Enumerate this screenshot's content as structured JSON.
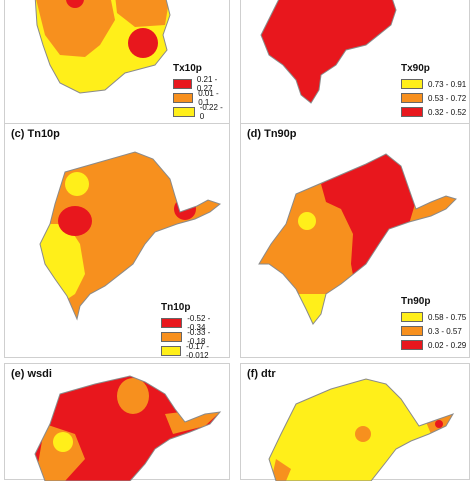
{
  "colors": {
    "red": "#e8171d",
    "orange": "#f7901e",
    "yellow": "#ffef1a",
    "outline": "#8a8a8a"
  },
  "panels": [
    {
      "id": "tx10p",
      "title": "",
      "legend": {
        "title": "Tx10p",
        "items": [
          {
            "label": "0.21 - 0.27",
            "color": "#e8171d"
          },
          {
            "label": "0.01 - 0.1",
            "color": "#f7901e"
          },
          {
            "label": "-0.22 - 0",
            "color": "#ffef1a"
          }
        ]
      }
    },
    {
      "id": "tx90p",
      "title": "",
      "legend": {
        "title": "Tx90p",
        "items": [
          {
            "label": "0.73 - 0.91",
            "color": "#ffef1a"
          },
          {
            "label": "0.53 - 0.72",
            "color": "#f7901e"
          },
          {
            "label": "0.32 - 0.52",
            "color": "#e8171d"
          }
        ]
      }
    },
    {
      "id": "tn10p",
      "title": "(c) Tn10p",
      "legend": {
        "title": "Tn10p",
        "items": [
          {
            "label": "-0.52 - -0.34",
            "color": "#e8171d"
          },
          {
            "label": "-0.33 - -0.18",
            "color": "#f7901e"
          },
          {
            "label": "-0.17 - -0.012",
            "color": "#ffef1a"
          }
        ]
      }
    },
    {
      "id": "tn90p",
      "title": "(d) Tn90p",
      "legend": {
        "title": "Tn90p",
        "items": [
          {
            "label": "0.58 - 0.75",
            "color": "#ffef1a"
          },
          {
            "label": "0.3 - 0.57",
            "color": "#f7901e"
          },
          {
            "label": "0.02 - 0.29",
            "color": "#e8171d"
          }
        ]
      }
    },
    {
      "id": "wsdi",
      "title": "(e) wsdi",
      "legend": null
    },
    {
      "id": "dtr",
      "title": "(f) dtr",
      "legend": null
    }
  ]
}
